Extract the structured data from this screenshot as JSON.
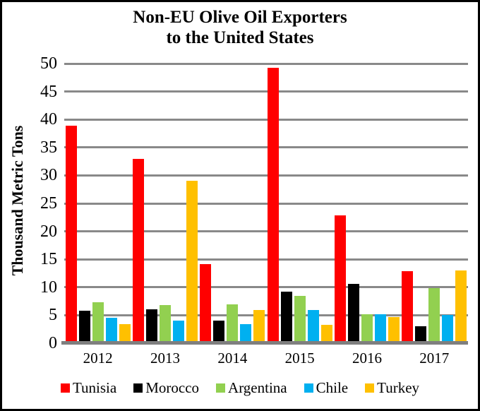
{
  "title": {
    "line1": "Non-EU Olive Oil Exporters",
    "line2": "to the United States"
  },
  "chart_data": {
    "type": "bar",
    "title": "Non-EU Olive Oil Exporters to the United States",
    "categories": [
      "2012",
      "2013",
      "2014",
      "2015",
      "2016",
      "2017"
    ],
    "series": [
      {
        "name": "Tunisia",
        "color": "#FF0000",
        "values": [
          38.9,
          33.0,
          14.1,
          49.2,
          22.8,
          12.9
        ]
      },
      {
        "name": "Morocco",
        "color": "#000000",
        "values": [
          5.8,
          6.0,
          4.1,
          9.2,
          10.6,
          3.0
        ]
      },
      {
        "name": "Argentina",
        "color": "#92D050",
        "values": [
          7.3,
          6.8,
          7.0,
          8.5,
          5.2,
          9.9
        ]
      },
      {
        "name": "Chile",
        "color": "#00B0F0",
        "values": [
          4.6,
          4.1,
          3.4,
          5.9,
          5.2,
          5.0
        ]
      },
      {
        "name": "Turkey",
        "color": "#FFC000",
        "values": [
          3.4,
          29.1,
          5.9,
          3.3,
          4.7,
          13.0
        ]
      }
    ],
    "xlabel": "",
    "ylabel": "Thousand Metric Tons",
    "ylim": [
      0,
      50
    ],
    "ytick_step": 5,
    "grid": true,
    "legend_position": "bottom",
    "gridline_color": "#898989",
    "axis_line_color": "#7F7F7F"
  }
}
